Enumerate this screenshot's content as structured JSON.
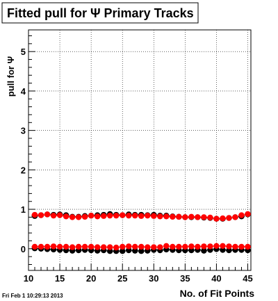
{
  "chart_data": {
    "type": "scatter",
    "title": "Fitted pull for Ψ  Primary Tracks",
    "xlabel": "No. of Fit Points",
    "ylabel": "pull for Ψ",
    "xlim": [
      10,
      45.5
    ],
    "ylim": [
      -0.55,
      5.55
    ],
    "x_ticks": [
      10,
      15,
      20,
      25,
      30,
      35,
      40,
      45
    ],
    "y_ticks": [
      0,
      1,
      2,
      3,
      4,
      5
    ],
    "grid": true,
    "footer": "Fri Feb  1 10:29:13 2013",
    "x": [
      11,
      12,
      13,
      14,
      15,
      16,
      17,
      18,
      19,
      20,
      21,
      22,
      23,
      24,
      25,
      26,
      27,
      28,
      29,
      30,
      31,
      32,
      33,
      34,
      35,
      36,
      37,
      38,
      39,
      40,
      41,
      42,
      43,
      44,
      45
    ],
    "series": [
      {
        "color": "#000000",
        "values": [
          0.83,
          0.85,
          0.87,
          0.86,
          0.87,
          0.85,
          0.81,
          0.81,
          0.83,
          0.84,
          0.85,
          0.86,
          0.88,
          0.86,
          0.85,
          0.87,
          0.86,
          0.86,
          0.85,
          0.86,
          0.84,
          0.84,
          0.82,
          0.81,
          0.8,
          0.8,
          0.8,
          0.79,
          0.78,
          0.76,
          0.76,
          0.78,
          0.8,
          0.82,
          0.87
        ]
      },
      {
        "color": "#ff0000",
        "values": [
          0.86,
          0.85,
          0.87,
          0.84,
          0.85,
          0.82,
          0.8,
          0.8,
          0.81,
          0.84,
          0.82,
          0.83,
          0.84,
          0.84,
          0.85,
          0.84,
          0.84,
          0.83,
          0.84,
          0.83,
          0.82,
          0.82,
          0.81,
          0.81,
          0.8,
          0.81,
          0.8,
          0.8,
          0.79,
          0.76,
          0.77,
          0.78,
          0.8,
          0.85,
          0.88
        ]
      },
      {
        "color": "#000000",
        "values": [
          0.01,
          0.0,
          -0.01,
          -0.02,
          -0.03,
          -0.04,
          -0.05,
          -0.04,
          -0.03,
          -0.04,
          -0.05,
          -0.04,
          -0.06,
          -0.06,
          -0.06,
          -0.04,
          -0.05,
          -0.06,
          -0.05,
          -0.03,
          -0.04,
          -0.02,
          -0.03,
          -0.04,
          -0.04,
          -0.04,
          -0.03,
          -0.05,
          -0.03,
          -0.01,
          -0.03,
          -0.04,
          -0.03,
          -0.03,
          -0.04
        ]
      },
      {
        "color": "#ff0000",
        "values": [
          0.05,
          0.05,
          0.05,
          0.06,
          0.05,
          0.05,
          0.04,
          0.05,
          0.05,
          0.05,
          0.04,
          0.04,
          0.04,
          0.03,
          0.05,
          0.06,
          0.05,
          0.05,
          0.04,
          0.04,
          0.04,
          0.07,
          0.05,
          0.05,
          0.05,
          0.06,
          0.05,
          0.06,
          0.06,
          0.07,
          0.07,
          0.06,
          0.05,
          0.05,
          0.05
        ]
      }
    ]
  }
}
